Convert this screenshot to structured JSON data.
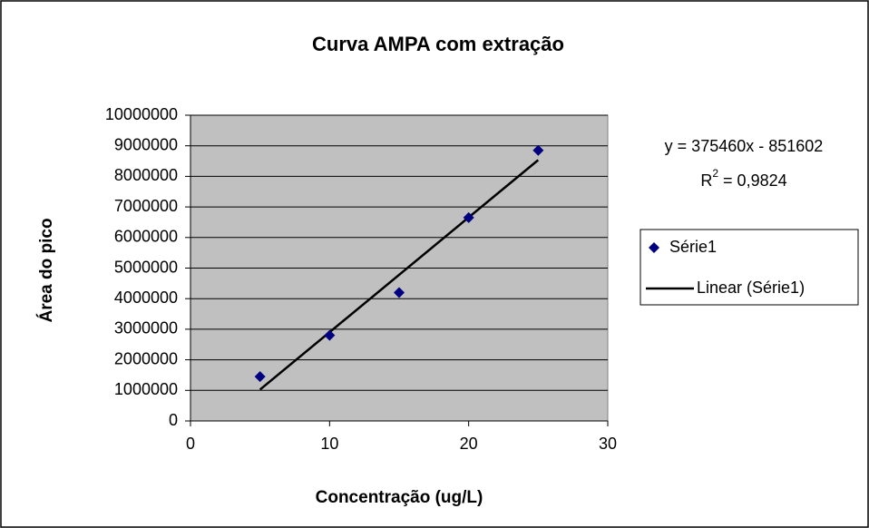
{
  "chart_data": {
    "type": "scatter",
    "title": "Curva AMPA com extração",
    "x_label": "Concentração (ug/L)",
    "y_label": "Área do pico",
    "x": [
      5,
      10,
      15,
      20,
      25
    ],
    "series": [
      {
        "name": "Série1",
        "color": "#000080",
        "values": [
          1450000,
          2800000,
          4200000,
          6650000,
          8850000
        ]
      }
    ],
    "trendline": {
      "name": "Linear (Série1)",
      "color": "#000000",
      "x": [
        5,
        25
      ],
      "values": [
        1025698,
        8534898
      ]
    },
    "equation": "y = 375460x - 851602",
    "r_squared": {
      "base": "R",
      "sup": "2",
      "rest": "= 0,9824"
    },
    "xlim": [
      0,
      30
    ],
    "xticks": [
      0,
      10,
      20,
      30
    ],
    "ylim": [
      0,
      10000000
    ],
    "yticks": [
      0,
      1000000,
      2000000,
      3000000,
      4000000,
      5000000,
      6000000,
      7000000,
      8000000,
      9000000,
      10000000
    ],
    "grid": true,
    "plot_background": "#c0c0c0",
    "legend_position": "right"
  }
}
